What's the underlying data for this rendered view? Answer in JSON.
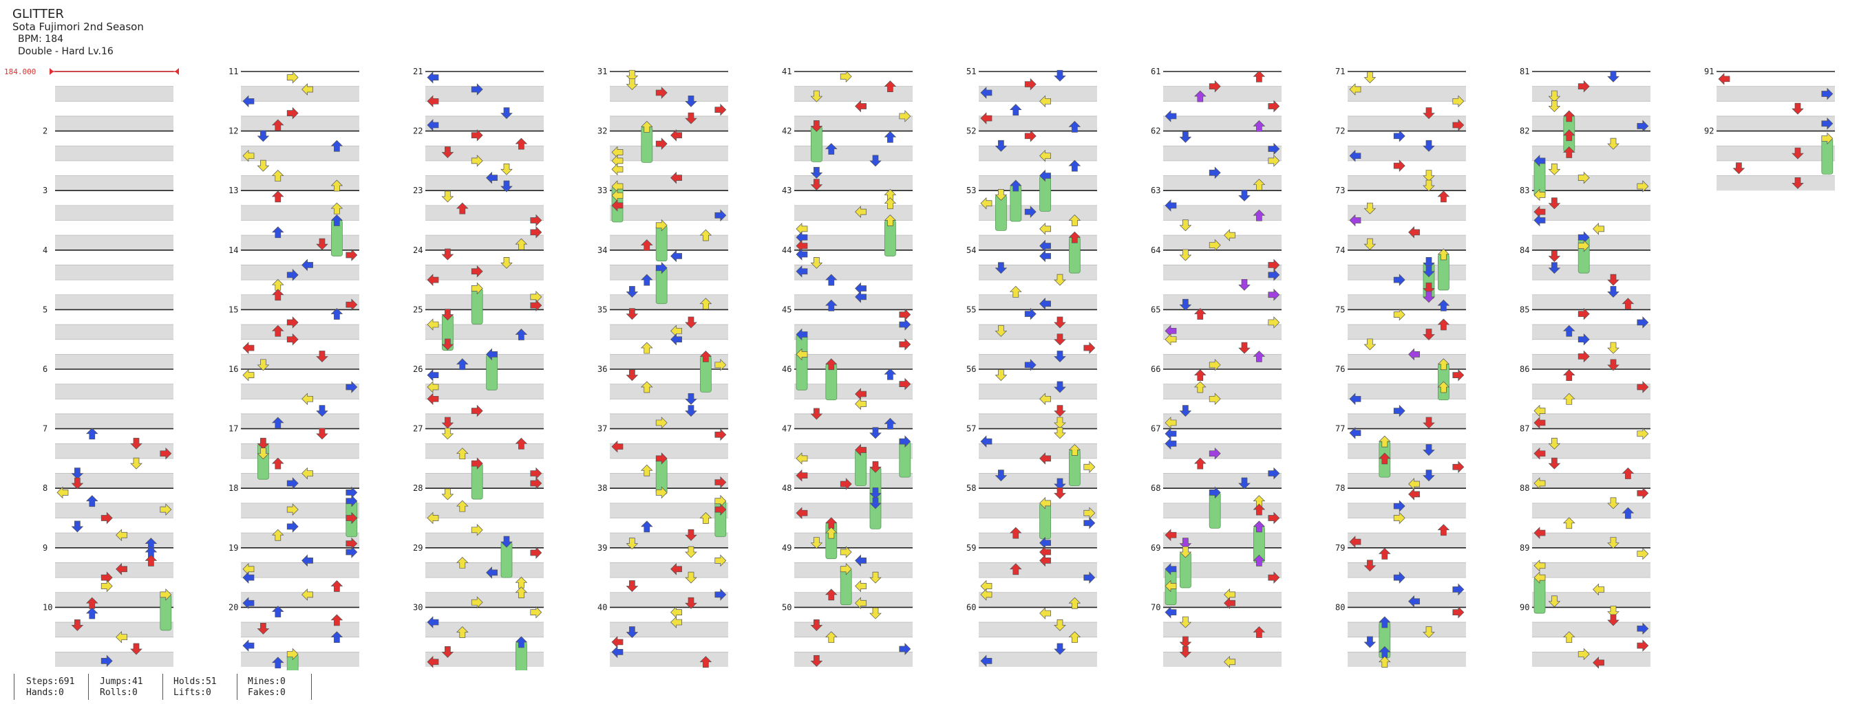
{
  "song": {
    "title": "GLITTER",
    "artist": "Sota Fujimori 2nd Season",
    "bpm_label": "BPM: 184",
    "difficulty_label": "Double - Hard Lv.16",
    "bpm_marker": "184.000"
  },
  "measures": {
    "first": 1,
    "last": 92,
    "per_column": 10,
    "columns": 10,
    "labeled": [
      2,
      3,
      4,
      5,
      6,
      7,
      8,
      9,
      10,
      11,
      12,
      13,
      14,
      15,
      16,
      17,
      18,
      19,
      20,
      21,
      22,
      23,
      24,
      25,
      26,
      27,
      28,
      29,
      30,
      31,
      32,
      33,
      34,
      35,
      36,
      37,
      38,
      39,
      40,
      41,
      42,
      43,
      44,
      45,
      46,
      47,
      48,
      49,
      50,
      51,
      52,
      53,
      54,
      55,
      56,
      57,
      58,
      59,
      60,
      61,
      62,
      63,
      64,
      65,
      66,
      67,
      68,
      69,
      70,
      71,
      72,
      73,
      74,
      75,
      76,
      77,
      78,
      79,
      80,
      81,
      82,
      83,
      84,
      85,
      86,
      87,
      88,
      89,
      90,
      91,
      92
    ]
  },
  "note_colors": {
    "quarter": "#e03030",
    "eighth": "#3050e0",
    "sixteenth": "#f0e040",
    "twelfth": "#a040e0",
    "hold": "#80d080"
  },
  "note_types": [
    "left-arrow",
    "down-arrow",
    "up-arrow",
    "right-arrow"
  ],
  "stats": {
    "steps": "Steps:691",
    "hands": "Hands:0",
    "jumps": "Jumps:41",
    "rolls": "Rolls:0",
    "holds": "Holds:51",
    "lifts": "Lifts:0",
    "mines": "Mines:0",
    "fakes": "Fakes:0"
  }
}
